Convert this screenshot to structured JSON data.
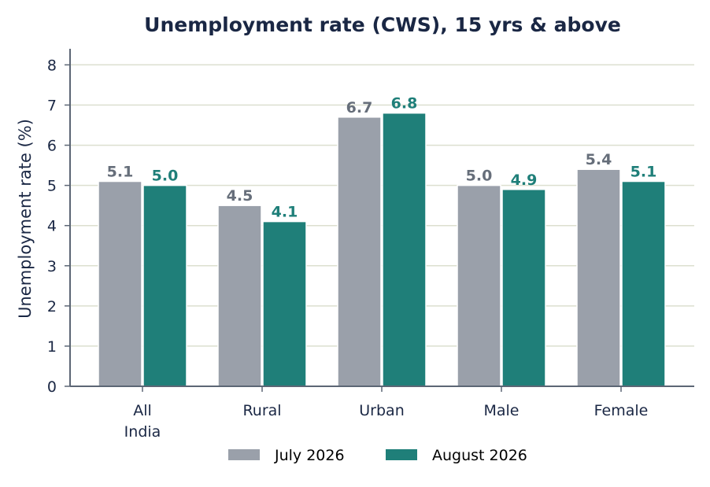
{
  "chart_data": {
    "type": "bar",
    "title": "Unemployment rate (CWS), 15 yrs & above",
    "xlabel": "",
    "ylabel": "Unemployment rate (%)",
    "categories": [
      [
        "All",
        "India"
      ],
      [
        "Rural"
      ],
      [
        "Urban"
      ],
      [
        "Male"
      ],
      [
        "Female"
      ]
    ],
    "series": [
      {
        "name": "July 2026",
        "values": [
          5.1,
          4.5,
          6.7,
          5.0,
          5.4
        ],
        "labels": [
          "5.1",
          "4.5",
          "6.7",
          "5.0",
          "5.4"
        ]
      },
      {
        "name": "August 2026",
        "values": [
          5.0,
          4.1,
          6.8,
          4.9,
          5.1
        ],
        "labels": [
          "5.0",
          "4.1",
          "6.8",
          "4.9",
          "5.1"
        ]
      }
    ],
    "ylim": [
      0,
      8.4
    ],
    "yticks": [
      "0",
      "1",
      "2",
      "3",
      "4",
      "5",
      "6",
      "7",
      "8"
    ],
    "grid": "horizontal",
    "legend_position": "bottom-center",
    "colors": {
      "series": [
        "#9aa0aa",
        "#1f7f79"
      ],
      "series_label": [
        "#666e7a",
        "#1f7f79"
      ],
      "text": "#1a2744",
      "grid": "#dcdfcf",
      "axis": "#5c6675"
    }
  }
}
